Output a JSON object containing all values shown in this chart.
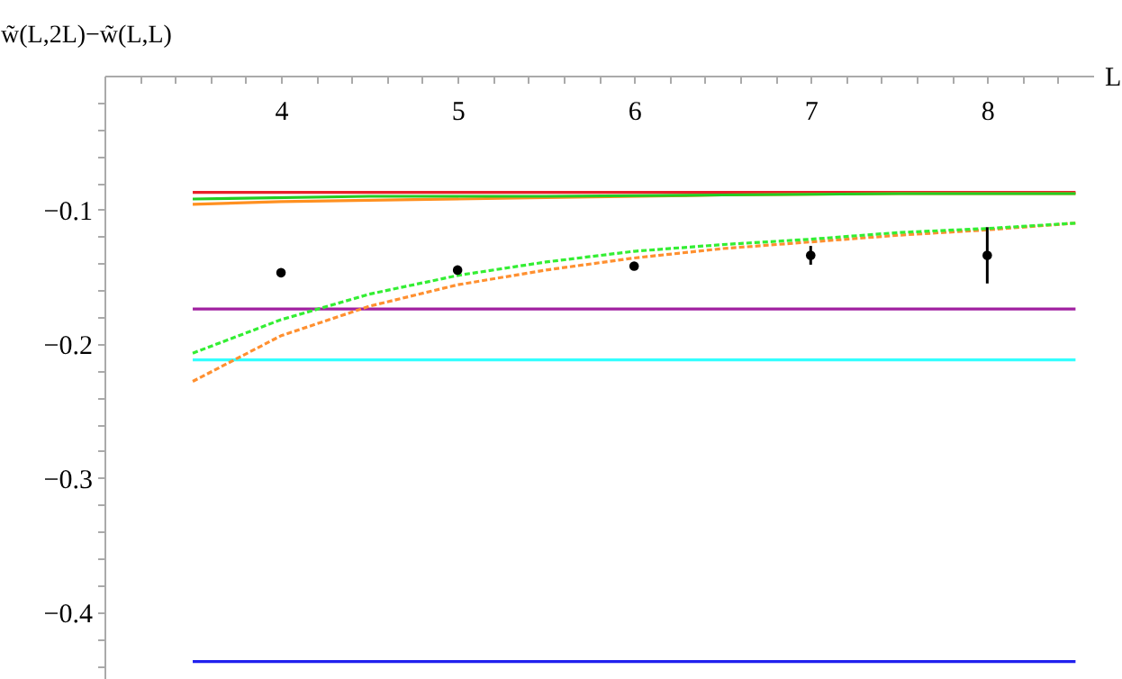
{
  "chart_data": {
    "type": "line",
    "xlabel": "L",
    "ylabel": "w̃(L,2L)−w̃(L,L)",
    "xlim": [
      3,
      8.6
    ],
    "ylim": [
      -0.45,
      0
    ],
    "xticks": [
      {
        "value": 3.2,
        "label": null
      },
      {
        "value": 3.4,
        "label": null
      },
      {
        "value": 3.6,
        "label": null
      },
      {
        "value": 3.8,
        "label": null
      },
      4,
      {
        "value": 4.2,
        "label": null
      },
      {
        "value": 4.4,
        "label": null
      },
      {
        "value": 4.6,
        "label": null
      },
      {
        "value": 4.8,
        "label": null
      },
      5,
      {
        "value": 5.2,
        "label": null
      },
      {
        "value": 5.4,
        "label": null
      },
      {
        "value": 5.6,
        "label": null
      },
      {
        "value": 5.8,
        "label": null
      },
      6,
      {
        "value": 6.2,
        "label": null
      },
      {
        "value": 6.4,
        "label": null
      },
      {
        "value": 6.6,
        "label": null
      },
      {
        "value": 6.8,
        "label": null
      },
      7,
      {
        "value": 7.2,
        "label": null
      },
      {
        "value": 7.4,
        "label": null
      },
      {
        "value": 7.6,
        "label": null
      },
      {
        "value": 7.8,
        "label": null
      },
      8,
      {
        "value": 8.2,
        "label": null
      },
      {
        "value": 8.4,
        "label": null
      }
    ],
    "yticks": [
      {
        "value": -0.02,
        "label": null
      },
      {
        "value": -0.04,
        "label": null
      },
      {
        "value": -0.06,
        "label": null
      },
      {
        "value": -0.08,
        "label": null
      },
      {
        "value": -0.1,
        "label": "−0.1"
      },
      {
        "value": -0.12,
        "label": null
      },
      {
        "value": -0.14,
        "label": null
      },
      {
        "value": -0.16,
        "label": null
      },
      {
        "value": -0.18,
        "label": null
      },
      {
        "value": -0.2,
        "label": "−0.2"
      },
      {
        "value": -0.22,
        "label": null
      },
      {
        "value": -0.24,
        "label": null
      },
      {
        "value": -0.26,
        "label": null
      },
      {
        "value": -0.28,
        "label": null
      },
      {
        "value": -0.3,
        "label": "−0.3"
      },
      {
        "value": -0.32,
        "label": null
      },
      {
        "value": -0.34,
        "label": null
      },
      {
        "value": -0.36,
        "label": null
      },
      {
        "value": -0.38,
        "label": null
      },
      {
        "value": -0.4,
        "label": "−0.4"
      },
      {
        "value": -0.42,
        "label": null
      },
      {
        "value": -0.44,
        "label": null
      }
    ],
    "grid": false,
    "series": [
      {
        "color": "#e8202a",
        "line_style": "solid",
        "x": [
          3.5,
          8.5
        ],
        "values": [
          -0.087,
          -0.087
        ]
      },
      {
        "color": "#ff9020",
        "line_style": "solid",
        "x": [
          3.5,
          4,
          4.5,
          5.5,
          6.5,
          7.5,
          8.5
        ],
        "values": [
          -0.096,
          -0.094,
          -0.093,
          -0.091,
          -0.089,
          -0.088,
          -0.088
        ]
      },
      {
        "color": "#22cc22",
        "line_style": "solid",
        "x": [
          3.5,
          4.5,
          5.5,
          6.5,
          7.5,
          8.5
        ],
        "values": [
          -0.092,
          -0.09,
          -0.09,
          -0.089,
          -0.088,
          -0.088
        ]
      },
      {
        "color": "#a020a0",
        "line_style": "solid",
        "x": [
          3.5,
          8.5
        ],
        "values": [
          -0.174,
          -0.174
        ]
      },
      {
        "color": "#33ffff",
        "line_style": "solid",
        "x": [
          3.5,
          8.5
        ],
        "values": [
          -0.212,
          -0.212
        ]
      },
      {
        "color": "#2020ee",
        "line_style": "solid",
        "x": [
          3.5,
          8.5
        ],
        "values": [
          -0.437,
          -0.437
        ]
      },
      {
        "color": "#ff9030",
        "line_style": "dashed",
        "x": [
          3.5,
          4,
          4.5,
          5,
          5.5,
          6,
          6.5,
          7,
          7.5,
          8,
          8.5
        ],
        "values": [
          -0.228,
          -0.194,
          -0.172,
          -0.156,
          -0.145,
          -0.136,
          -0.129,
          -0.124,
          -0.119,
          -0.115,
          -0.11
        ]
      },
      {
        "color": "#33ee33",
        "line_style": "dashed",
        "x": [
          3.5,
          4,
          4.5,
          5,
          5.5,
          6,
          6.5,
          7,
          7.5,
          8,
          8.5
        ],
        "values": [
          -0.207,
          -0.182,
          -0.163,
          -0.149,
          -0.139,
          -0.131,
          -0.126,
          -0.122,
          -0.117,
          -0.114,
          -0.11
        ]
      },
      {
        "type": "scatter",
        "color": "#000000",
        "marker": "circle",
        "x": [
          4,
          5,
          6,
          7,
          8
        ],
        "values": [
          -0.147,
          -0.145,
          -0.142,
          -0.134,
          -0.134
        ],
        "errors": [
          null,
          null,
          0.002,
          0.007,
          0.021
        ]
      }
    ]
  }
}
